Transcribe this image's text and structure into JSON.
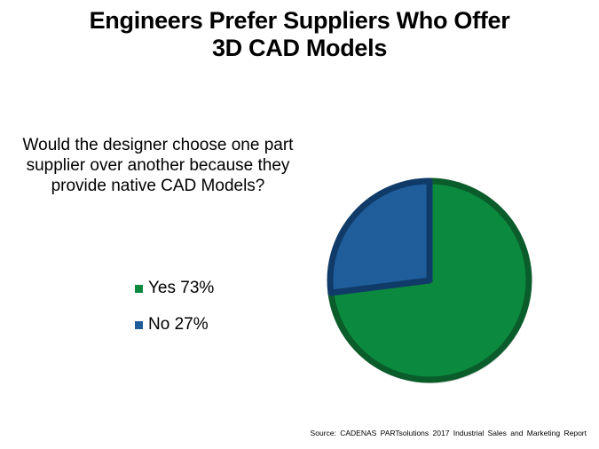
{
  "title_line1": "Engineers Prefer Suppliers Who Offer",
  "title_line2": "3D CAD Models",
  "question": "Would the designer choose one part supplier over another because they provide native CAD Models?",
  "source": "Source: CADENAS PARTsolutions 2017 Industrial Sales and Marketing Report",
  "chart_data": {
    "type": "pie",
    "title": "Engineers Prefer Suppliers Who Offer 3D CAD Models",
    "categories": [
      "Yes",
      "No"
    ],
    "values": [
      73,
      27
    ],
    "labels": [
      "Yes 73%",
      "No 27%"
    ],
    "colors": [
      "#0b8a3f",
      "#1f5d9b"
    ],
    "edge_colors": [
      "#0a5c2a",
      "#103b68"
    ],
    "legend_position": "left"
  }
}
